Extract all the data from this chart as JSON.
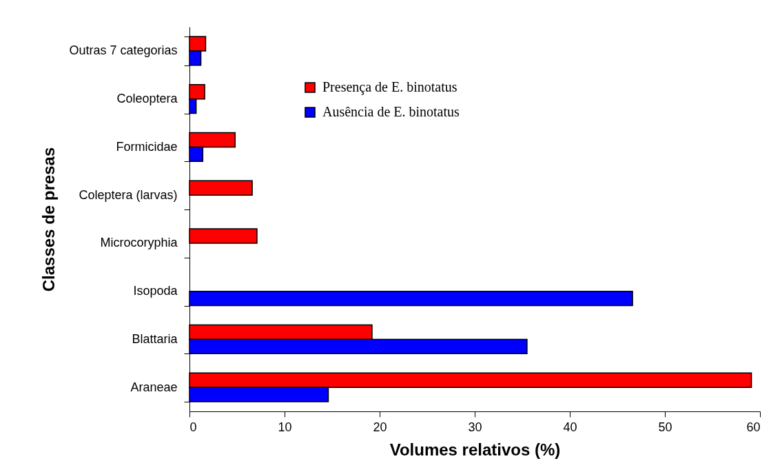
{
  "chart_data": {
    "type": "bar",
    "orientation": "horizontal",
    "xlabel": "Volumes relativos (%)",
    "ylabel": "Classes de presas",
    "categories": [
      "Outras 7 categorias",
      "Coleoptera",
      "Formicidae",
      "Coleptera (larvas)",
      "Microcoryphia",
      "Isopoda",
      "Blattaria",
      "Araneae"
    ],
    "series": [
      {
        "name": "Presença de E. binotatus",
        "color": "#ff0000",
        "values": [
          1.7,
          1.6,
          4.8,
          6.6,
          7.1,
          null,
          19.2,
          59.1
        ]
      },
      {
        "name": "Ausência de E. binotatus",
        "color": "#0000ff",
        "values": [
          1.2,
          0.7,
          1.4,
          null,
          null,
          46.6,
          35.5,
          14.6
        ]
      }
    ],
    "xlim": [
      0,
      60
    ],
    "xticks": [
      0,
      10,
      20,
      30,
      40,
      50,
      60
    ],
    "grid": false,
    "legend": "top"
  }
}
